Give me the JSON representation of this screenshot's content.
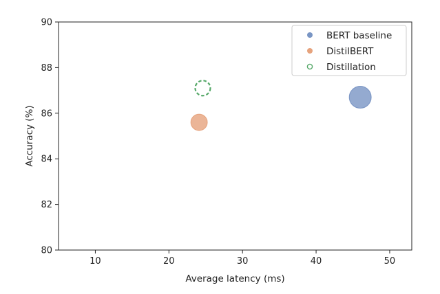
{
  "chart_data": {
    "type": "scatter",
    "title": "",
    "xlabel": "Average latency (ms)",
    "ylabel": "Accuracy (%)",
    "xlim": [
      5,
      53
    ],
    "ylim": [
      80,
      90
    ],
    "xticks": [
      10,
      20,
      30,
      40,
      50
    ],
    "yticks": [
      80,
      82,
      84,
      86,
      88,
      90
    ],
    "grid": false,
    "legend_position": "top-right",
    "series": [
      {
        "name": "BERT baseline",
        "color": "#4c72b0",
        "marker": "filled",
        "points": [
          {
            "x": 46.0,
            "y": 86.7
          }
        ]
      },
      {
        "name": "DistilBERT",
        "color": "#dd8452",
        "marker": "filled",
        "points": [
          {
            "x": 24.1,
            "y": 85.6
          }
        ]
      },
      {
        "name": "Distillation",
        "color": "#55a868",
        "marker": "dashed-ring",
        "points": [
          {
            "x": 24.6,
            "y": 87.1
          }
        ]
      }
    ]
  }
}
